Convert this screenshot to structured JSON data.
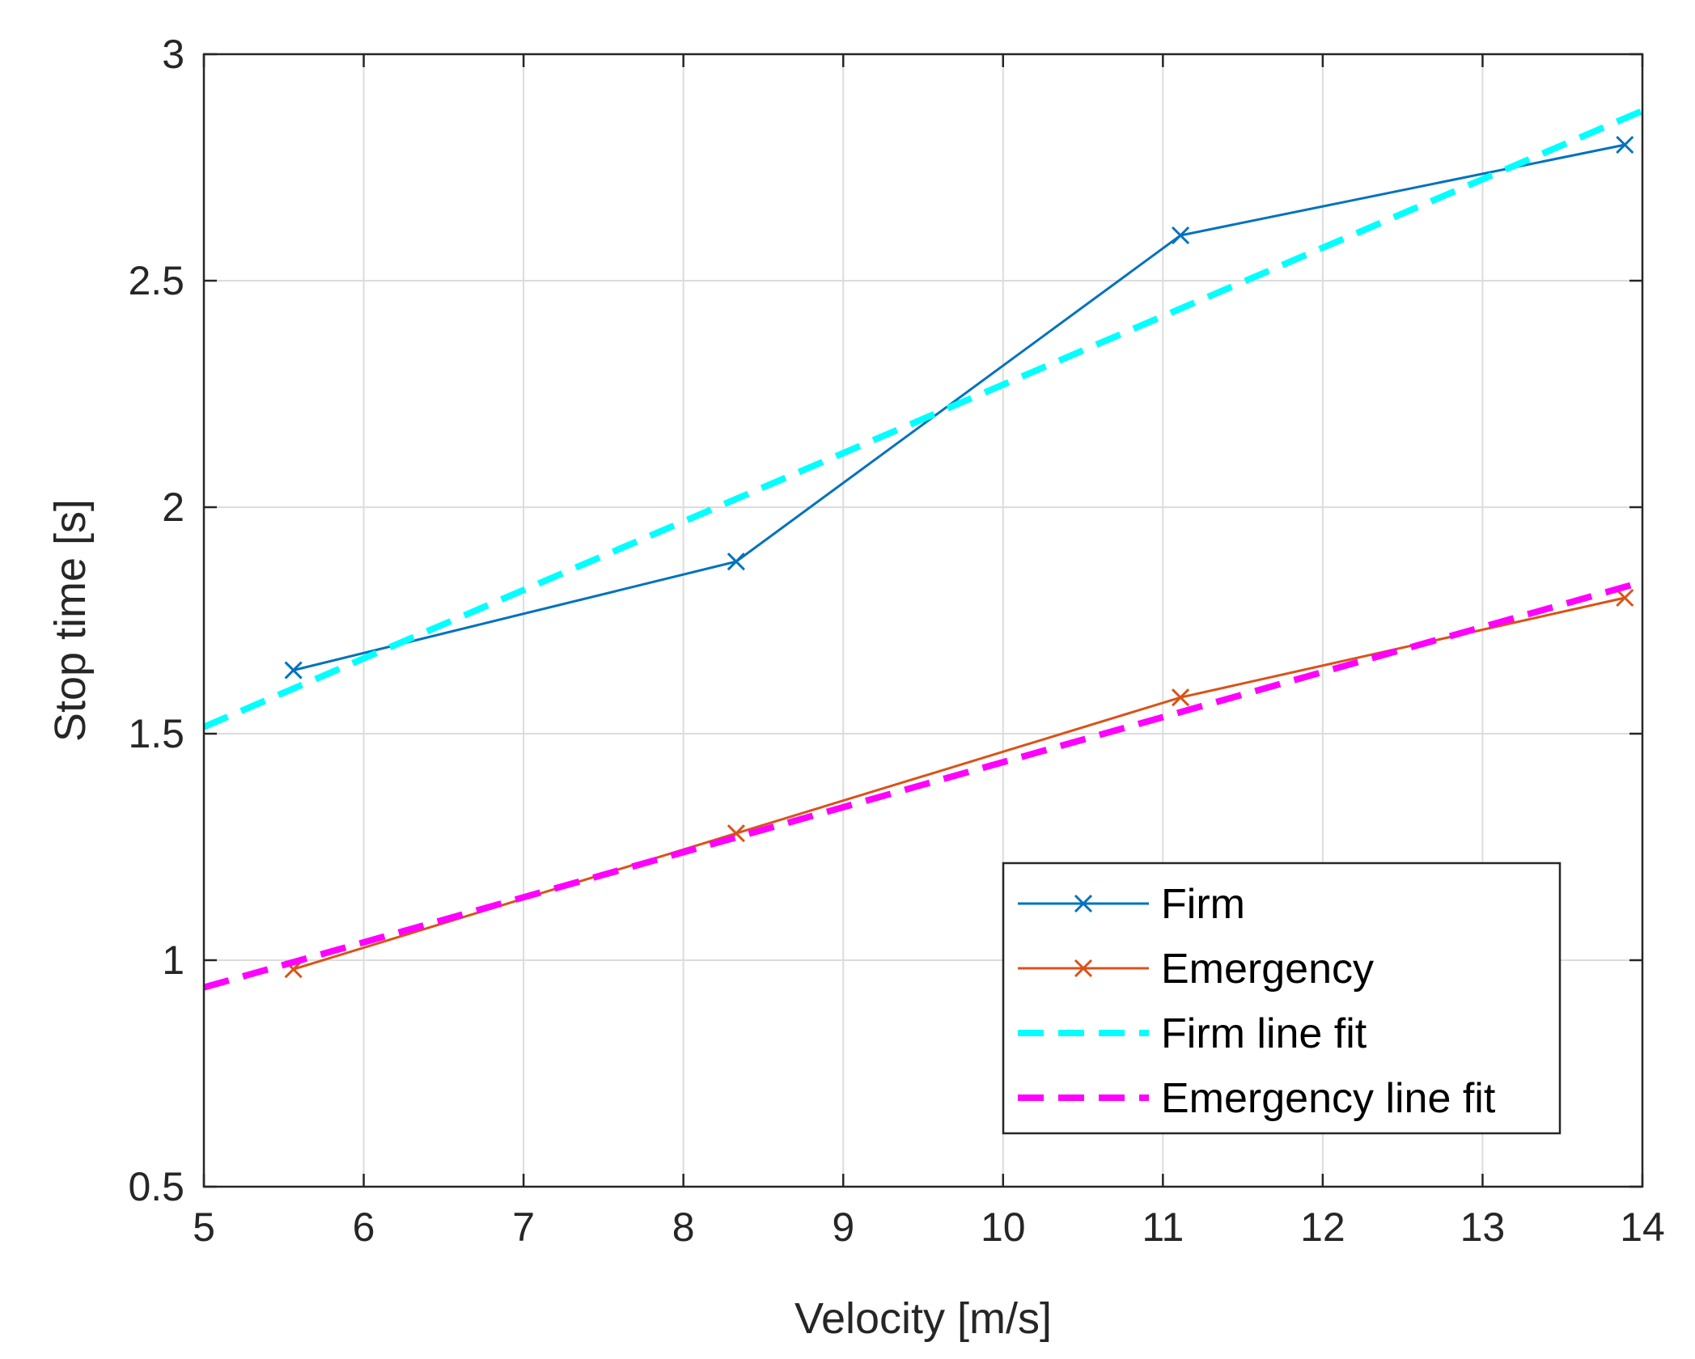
{
  "chart_data": {
    "type": "line",
    "title": "",
    "xlabel": "Velocity [m/s]",
    "ylabel": "Stop time [s]",
    "xlim": [
      5,
      14
    ],
    "ylim": [
      0.5,
      3
    ],
    "xticks": [
      5,
      6,
      7,
      8,
      9,
      10,
      11,
      12,
      13,
      14
    ],
    "yticks": [
      0.5,
      1,
      1.5,
      2,
      2.5,
      3
    ],
    "xtick_labels": [
      "5",
      "6",
      "7",
      "8",
      "9",
      "10",
      "11",
      "12",
      "13",
      "14"
    ],
    "ytick_labels": [
      "0.5",
      "1",
      "1.5",
      "2",
      "2.5",
      "3"
    ],
    "grid": true,
    "legend_position": "lower-right",
    "series": [
      {
        "name": "Firm",
        "color": "#0072BD",
        "style": "solid",
        "marker": "x",
        "x": [
          5.56,
          8.33,
          11.11,
          13.89
        ],
        "y": [
          1.64,
          1.88,
          2.6,
          2.8
        ]
      },
      {
        "name": "Emergency",
        "color": "#D95319",
        "style": "solid",
        "marker": "x",
        "x": [
          5.56,
          8.33,
          11.11,
          13.89
        ],
        "y": [
          0.98,
          1.28,
          1.58,
          1.8
        ]
      },
      {
        "name": "Firm line fit",
        "color": "#00FFFF",
        "style": "dashed",
        "marker": "none",
        "x": [
          5,
          14
        ],
        "y": [
          1.515,
          2.875
        ]
      },
      {
        "name": "Emergency line fit",
        "color": "#FF00FF",
        "style": "dashed",
        "marker": "none",
        "x": [
          5,
          14
        ],
        "y": [
          0.94,
          1.835
        ]
      }
    ]
  }
}
